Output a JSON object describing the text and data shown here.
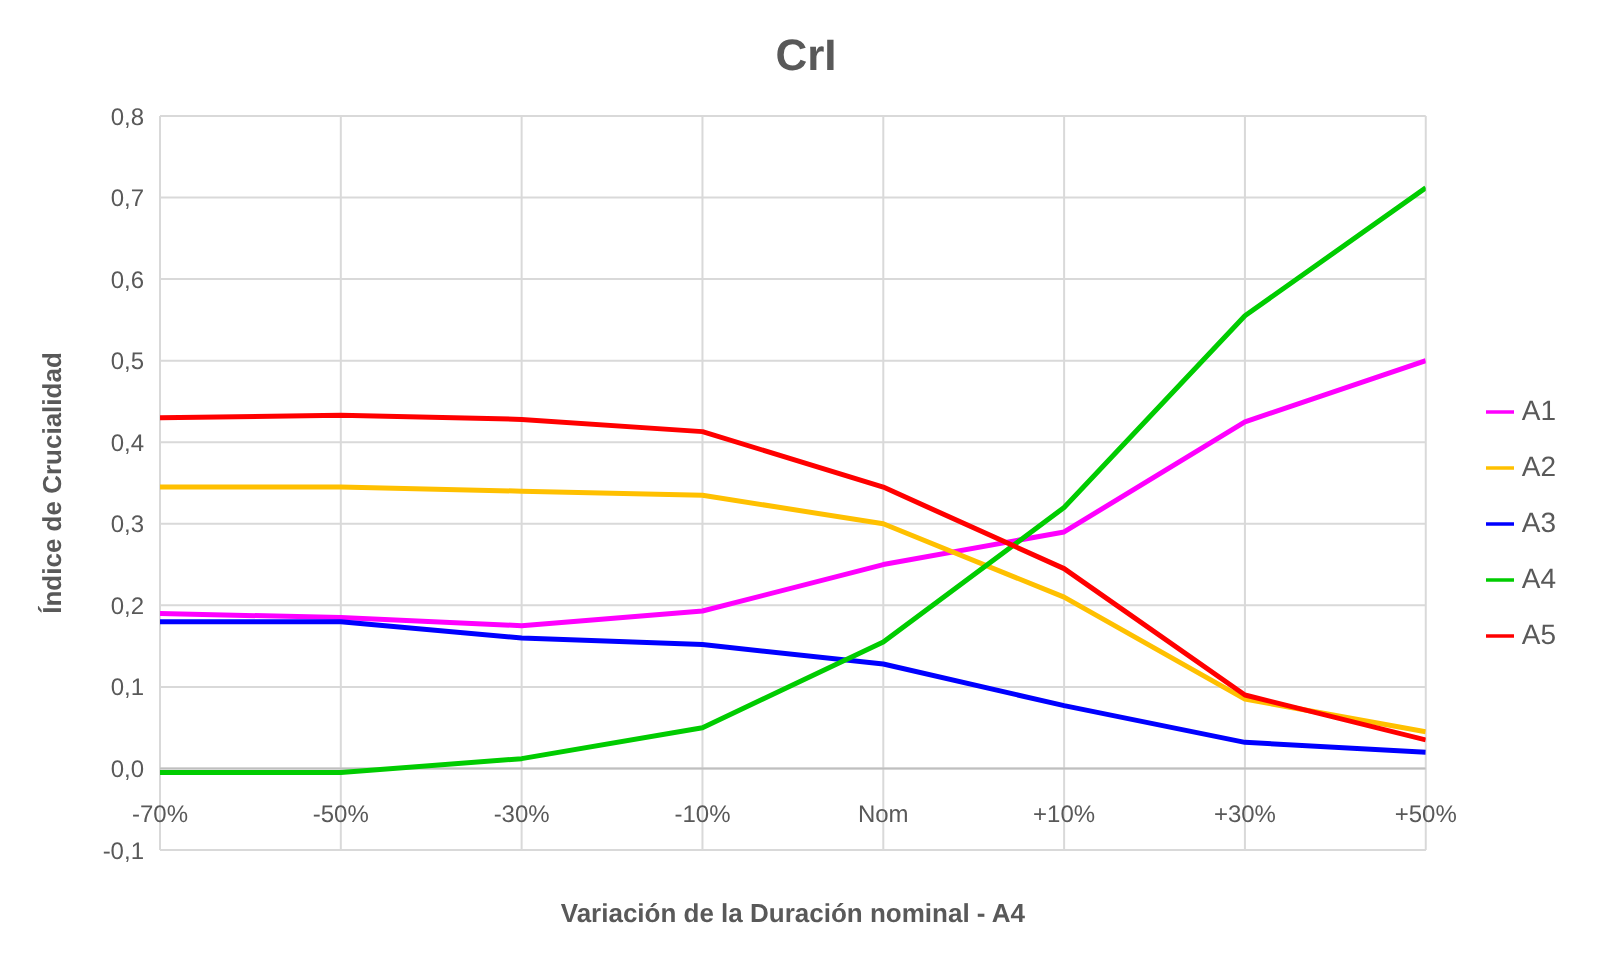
{
  "chart_data": {
    "type": "line",
    "title": "CrI",
    "xlabel": "Variación de la Duración nominal - A4",
    "ylabel": "Índice de Crucialidad",
    "categories": [
      "-70%",
      "-50%",
      "-30%",
      "-10%",
      "Nom",
      "+10%",
      "+30%",
      "+50%"
    ],
    "series": [
      {
        "name": "A1",
        "color": "#ff00ff",
        "values": [
          0.19,
          0.185,
          0.175,
          0.193,
          0.25,
          0.29,
          0.425,
          0.5
        ]
      },
      {
        "name": "A2",
        "color": "#ffc000",
        "values": [
          0.345,
          0.345,
          0.34,
          0.335,
          0.3,
          0.21,
          0.085,
          0.045
        ]
      },
      {
        "name": "A3",
        "color": "#0000ff",
        "values": [
          0.18,
          0.18,
          0.16,
          0.152,
          0.128,
          0.077,
          0.032,
          0.02
        ]
      },
      {
        "name": "A4",
        "color": "#00cc00",
        "values": [
          -0.005,
          -0.005,
          0.012,
          0.05,
          0.155,
          0.32,
          0.555,
          0.712
        ]
      },
      {
        "name": "A5",
        "color": "#ff0000",
        "values": [
          0.43,
          0.433,
          0.428,
          0.413,
          0.345,
          0.245,
          0.09,
          0.035
        ]
      }
    ],
    "ylim": [
      -0.1,
      0.8
    ],
    "yticks": [
      {
        "value": -0.1,
        "label": "-0,1"
      },
      {
        "value": 0,
        "label": "0,0"
      },
      {
        "value": 0.1,
        "label": "0,1"
      },
      {
        "value": 0.2,
        "label": "0,2"
      },
      {
        "value": 0.3,
        "label": "0,3"
      },
      {
        "value": 0.4,
        "label": "0,4"
      },
      {
        "value": 0.5,
        "label": "0,5"
      },
      {
        "value": 0.6,
        "label": "0,6"
      },
      {
        "value": 0.7,
        "label": "0,7"
      },
      {
        "value": 0.8,
        "label": "0,8"
      }
    ],
    "grid": true,
    "legend": "right",
    "marker": "none",
    "line_style": "solid"
  }
}
